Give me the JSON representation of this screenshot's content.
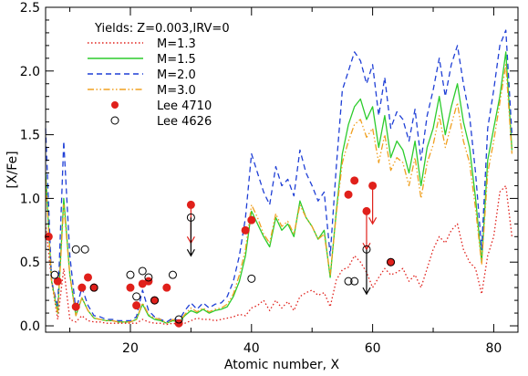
{
  "chart_data": {
    "type": "line",
    "title": "",
    "xlabel": "Atomic number, X",
    "ylabel": "[X/Fe]",
    "xlim": [
      6,
      84
    ],
    "ylim": [
      -0.05,
      2.5
    ],
    "xticks": [
      20,
      40,
      60,
      80
    ],
    "yticks": [
      0.0,
      0.5,
      1.0,
      1.5,
      2.0,
      2.5
    ],
    "xtick_labels": [
      "20",
      "40",
      "60",
      "80"
    ],
    "ytick_labels": [
      "0.0",
      "0.5",
      "1.0",
      "1.5",
      "2.0",
      "2.5"
    ],
    "grid": false,
    "legend_position": "top-left",
    "legend_title": "Yields: Z=0.003,IRV=0",
    "x": [
      6,
      7,
      8,
      9,
      10,
      11,
      12,
      13,
      14,
      15,
      16,
      17,
      18,
      19,
      20,
      21,
      22,
      23,
      24,
      25,
      26,
      27,
      28,
      29,
      30,
      31,
      32,
      33,
      34,
      35,
      36,
      37,
      38,
      39,
      40,
      41,
      42,
      43,
      44,
      45,
      46,
      47,
      48,
      49,
      50,
      51,
      52,
      53,
      54,
      55,
      56,
      57,
      58,
      59,
      60,
      61,
      62,
      63,
      64,
      65,
      66,
      67,
      68,
      69,
      70,
      71,
      72,
      73,
      74,
      75,
      76,
      77,
      78,
      79,
      80,
      81,
      82,
      83
    ],
    "series": [
      {
        "name": "M=1.3",
        "style": "dotted",
        "color": "#e0201b",
        "values": [
          0.8,
          0.35,
          0.05,
          0.45,
          0.05,
          0.03,
          0.08,
          0.04,
          0.03,
          0.03,
          0.02,
          0.02,
          0.02,
          0.02,
          0.02,
          0.02,
          0.05,
          0.03,
          0.02,
          0.02,
          0.01,
          0.02,
          0.01,
          0.02,
          0.04,
          0.06,
          0.05,
          0.05,
          0.04,
          0.05,
          0.06,
          0.07,
          0.09,
          0.08,
          0.14,
          0.16,
          0.2,
          0.12,
          0.2,
          0.14,
          0.19,
          0.12,
          0.23,
          0.26,
          0.28,
          0.24,
          0.26,
          0.15,
          0.36,
          0.44,
          0.46,
          0.55,
          0.5,
          0.42,
          0.3,
          0.38,
          0.45,
          0.4,
          0.42,
          0.45,
          0.35,
          0.4,
          0.3,
          0.45,
          0.6,
          0.7,
          0.65,
          0.75,
          0.8,
          0.6,
          0.5,
          0.45,
          0.25,
          0.55,
          0.7,
          1.05,
          1.1,
          0.7
        ]
      },
      {
        "name": "M=1.5",
        "style": "solid",
        "color": "#2ccc2c",
        "values": [
          1.2,
          0.35,
          0.1,
          1.0,
          0.4,
          0.08,
          0.22,
          0.12,
          0.06,
          0.05,
          0.04,
          0.04,
          0.03,
          0.03,
          0.03,
          0.05,
          0.17,
          0.08,
          0.05,
          0.04,
          0.02,
          0.04,
          0.03,
          0.08,
          0.12,
          0.1,
          0.13,
          0.1,
          0.12,
          0.13,
          0.15,
          0.23,
          0.35,
          0.55,
          0.9,
          0.8,
          0.7,
          0.62,
          0.85,
          0.75,
          0.8,
          0.7,
          0.98,
          0.85,
          0.78,
          0.68,
          0.75,
          0.38,
          0.9,
          1.35,
          1.58,
          1.72,
          1.78,
          1.62,
          1.72,
          1.4,
          1.65,
          1.32,
          1.45,
          1.38,
          1.2,
          1.45,
          1.1,
          1.4,
          1.55,
          1.8,
          1.5,
          1.72,
          1.9,
          1.6,
          1.4,
          1.0,
          0.5,
          1.3,
          1.55,
          1.8,
          2.15,
          1.38
        ]
      },
      {
        "name": "M=2.0",
        "style": "dashed",
        "color": "#1f3fd6",
        "values": [
          1.55,
          0.35,
          0.15,
          1.45,
          0.55,
          0.12,
          0.3,
          0.16,
          0.08,
          0.07,
          0.05,
          0.05,
          0.04,
          0.04,
          0.04,
          0.07,
          0.28,
          0.12,
          0.07,
          0.05,
          0.03,
          0.06,
          0.04,
          0.12,
          0.18,
          0.13,
          0.18,
          0.14,
          0.17,
          0.18,
          0.23,
          0.35,
          0.55,
          0.85,
          1.35,
          1.2,
          1.05,
          0.95,
          1.25,
          1.1,
          1.15,
          1.02,
          1.38,
          1.2,
          1.1,
          0.98,
          1.05,
          0.55,
          1.25,
          1.85,
          2.0,
          2.15,
          2.08,
          1.9,
          2.05,
          1.65,
          1.95,
          1.55,
          1.68,
          1.62,
          1.45,
          1.7,
          1.3,
          1.65,
          1.85,
          2.1,
          1.8,
          2.05,
          2.2,
          1.9,
          1.65,
          1.2,
          0.6,
          1.55,
          1.85,
          2.2,
          2.32,
          1.5
        ]
      },
      {
        "name": "M=3.0",
        "style": "dash-dot-dot",
        "color": "#f0a020",
        "values": [
          1.15,
          0.35,
          0.1,
          0.95,
          0.4,
          0.08,
          0.22,
          0.12,
          0.06,
          0.05,
          0.04,
          0.04,
          0.03,
          0.03,
          0.03,
          0.05,
          0.18,
          0.09,
          0.06,
          0.05,
          0.02,
          0.05,
          0.03,
          0.09,
          0.14,
          0.11,
          0.14,
          0.11,
          0.13,
          0.14,
          0.17,
          0.25,
          0.4,
          0.6,
          0.95,
          0.85,
          0.72,
          0.65,
          0.88,
          0.78,
          0.82,
          0.72,
          0.95,
          0.85,
          0.78,
          0.68,
          0.72,
          0.4,
          0.88,
          1.28,
          1.45,
          1.58,
          1.62,
          1.48,
          1.55,
          1.28,
          1.5,
          1.22,
          1.32,
          1.28,
          1.1,
          1.32,
          1.0,
          1.28,
          1.42,
          1.65,
          1.4,
          1.58,
          1.75,
          1.45,
          1.28,
          0.92,
          0.48,
          1.2,
          1.45,
          1.75,
          2.05,
          1.35
        ]
      }
    ],
    "observations": [
      {
        "name": "Lee 4710",
        "marker": "filled-circle",
        "color": "#e0201b",
        "points": [
          [
            6.5,
            0.7
          ],
          [
            8.0,
            0.35
          ],
          [
            11.0,
            0.15
          ],
          [
            12.0,
            0.3
          ],
          [
            13.0,
            0.38
          ],
          [
            14.0,
            0.3
          ],
          [
            20.0,
            0.3
          ],
          [
            21.0,
            0.16
          ],
          [
            22.0,
            0.33
          ],
          [
            23.0,
            0.35
          ],
          [
            24.0,
            0.2
          ],
          [
            26.0,
            0.3
          ],
          [
            28.0,
            0.02
          ],
          [
            30.0,
            0.95
          ],
          [
            39.0,
            0.75
          ],
          [
            40.0,
            0.83
          ],
          [
            56.0,
            1.03
          ],
          [
            57.0,
            1.14
          ],
          [
            59.0,
            0.9
          ],
          [
            60.0,
            1.1
          ],
          [
            63.0,
            0.5
          ]
        ]
      },
      {
        "name": "Lee 4626",
        "marker": "open-circle",
        "color": "#000000",
        "points": [
          [
            7.5,
            0.4
          ],
          [
            11.0,
            0.6
          ],
          [
            12.5,
            0.6
          ],
          [
            14.0,
            0.3
          ],
          [
            20.0,
            0.4
          ],
          [
            21.0,
            0.23
          ],
          [
            22.0,
            0.43
          ],
          [
            23.0,
            0.38
          ],
          [
            24.0,
            0.2
          ],
          [
            27.0,
            0.4
          ],
          [
            28.0,
            0.05
          ],
          [
            30.0,
            0.85
          ],
          [
            40.0,
            0.37
          ],
          [
            56.0,
            0.35
          ],
          [
            57.0,
            0.35
          ],
          [
            59.0,
            0.6
          ],
          [
            63.0,
            0.5
          ]
        ]
      }
    ],
    "upper_limits": [
      {
        "x": 30.0,
        "from": 0.95,
        "to": 0.65,
        "color": "#e0201b"
      },
      {
        "x": 30.0,
        "from": 0.85,
        "to": 0.55,
        "color": "#000000"
      },
      {
        "x": 59.0,
        "from": 0.9,
        "to": 0.6,
        "color": "#e0201b"
      },
      {
        "x": 59.0,
        "from": 0.6,
        "to": 0.25,
        "color": "#000000"
      },
      {
        "x": 60.0,
        "from": 1.1,
        "to": 0.8,
        "color": "#e0201b"
      }
    ]
  }
}
